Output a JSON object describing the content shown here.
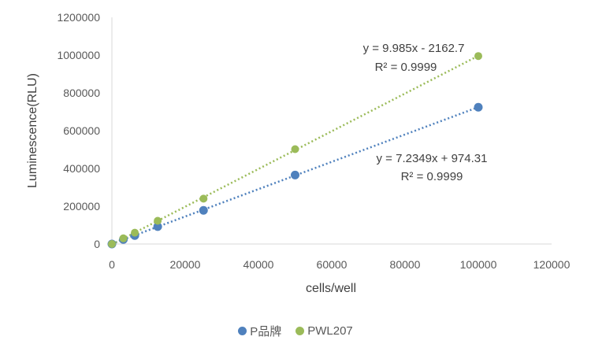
{
  "chart_data": {
    "type": "scatter",
    "xlabel": "cells/well",
    "ylabel": "Luminescence(RLU)",
    "xlim": [
      0,
      120000
    ],
    "ylim": [
      0,
      1200000
    ],
    "x_ticks": [
      0,
      20000,
      40000,
      60000,
      80000,
      100000,
      120000
    ],
    "y_ticks": [
      0,
      200000,
      400000,
      600000,
      800000,
      1000000,
      1200000
    ],
    "x_tick_labels": [
      "0",
      "20000",
      "40000",
      "60000",
      "80000",
      "100000",
      "120000"
    ],
    "y_tick_labels": [
      "0",
      "200000",
      "400000",
      "600000",
      "800000",
      "1000000",
      "1200000"
    ],
    "grid": false,
    "legend_position": "bottom",
    "series": [
      {
        "name": "P品牌",
        "color": "#4f81bd",
        "points": [
          [
            0,
            0
          ],
          [
            3125,
            24000
          ],
          [
            6250,
            45000
          ],
          [
            12500,
            92000
          ],
          [
            25000,
            178000
          ],
          [
            50000,
            365000
          ],
          [
            100000,
            724000
          ]
        ],
        "trendline": {
          "slope": 7.2349,
          "intercept": 974.31,
          "equation": "y = 7.2349x + 974.31",
          "r2": "R² = 0.9999"
        }
      },
      {
        "name": "PWL207",
        "color": "#9bbb59",
        "points": [
          [
            0,
            0
          ],
          [
            3125,
            30000
          ],
          [
            6250,
            60000
          ],
          [
            12500,
            123000
          ],
          [
            25000,
            240000
          ],
          [
            50000,
            502000
          ],
          [
            100000,
            995000
          ]
        ],
        "trendline": {
          "slope": 9.985,
          "intercept": -2162.7,
          "equation": "y = 9.985x - 2162.7",
          "r2": "R² = 0.9999"
        }
      }
    ]
  }
}
